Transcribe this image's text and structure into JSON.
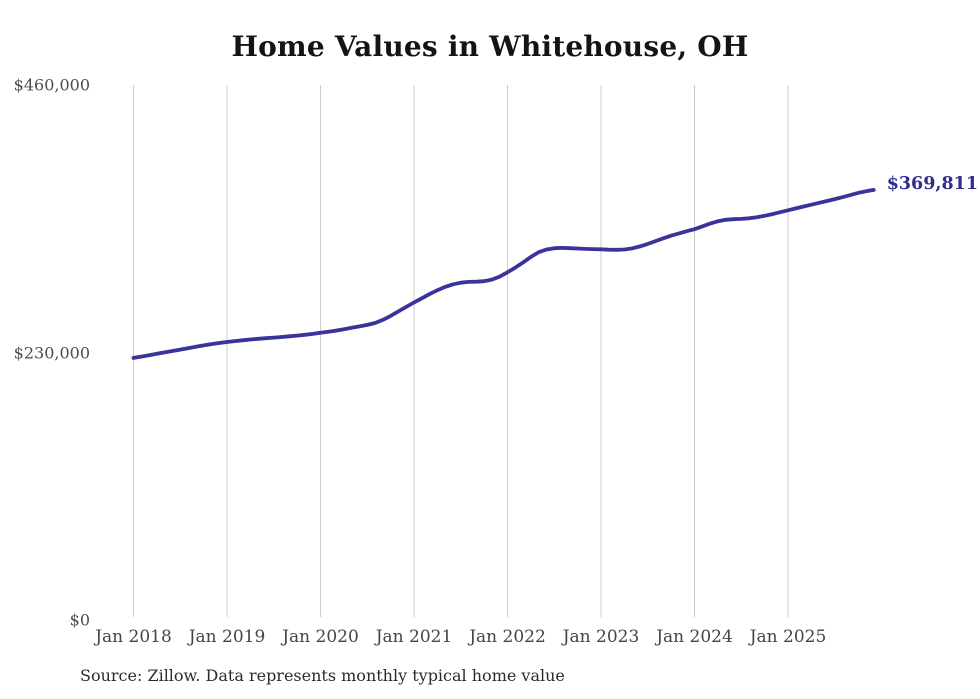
{
  "chart": {
    "title": "Home Values in Whitehouse, OH",
    "end_label": "$369,811",
    "source": "Source: Zillow. Data represents monthly typical home value",
    "colors": {
      "line": "#3a339c",
      "end_label": "#302b8d",
      "grid": "#cccccc",
      "axis_text": "#4d4d4d",
      "title_text": "#141414",
      "source_text": "#2b2b2b"
    }
  },
  "chart_data": {
    "type": "line",
    "title": "Home Values in Whitehouse, OH",
    "xlabel": "",
    "ylabel": "",
    "ylim": [
      0,
      460000
    ],
    "grid": "vertical-only",
    "legend": "none",
    "x_ticks": [
      "Jan 2018",
      "Jan 2019",
      "Jan 2020",
      "Jan 2021",
      "Jan 2022",
      "Jan 2023",
      "Jan 2024",
      "Jan 2025"
    ],
    "y_ticks": [
      {
        "label": "$460,000",
        "value": 460000
      },
      {
        "label": "$230,000",
        "value": 230000
      },
      {
        "label": "$0",
        "value": 0
      }
    ],
    "series": [
      {
        "name": "Typical home value (monthly)",
        "frequency": "monthly",
        "start_month": "Jan 2018",
        "end_month": "Dec 2025",
        "final_value": 369811,
        "final_label": "$369,811",
        "values": [
          225400,
          226500,
          227700,
          228900,
          230100,
          231300,
          232500,
          233700,
          234900,
          236100,
          237200,
          238200,
          239000,
          239800,
          240500,
          241200,
          241800,
          242300,
          242800,
          243300,
          243900,
          244500,
          245200,
          246000,
          246900,
          247800,
          248800,
          250000,
          251200,
          252400,
          253700,
          255400,
          258000,
          261500,
          265300,
          269200,
          273000,
          276600,
          280200,
          283600,
          286400,
          288600,
          290000,
          290700,
          290900,
          291300,
          292700,
          295300,
          299000,
          303000,
          307500,
          312200,
          316200,
          318600,
          319700,
          319900,
          319700,
          319400,
          319100,
          318900,
          318700,
          318400,
          318300,
          318600,
          319500,
          321200,
          323400,
          325800,
          328200,
          330400,
          332400,
          334300,
          336000,
          338400,
          340800,
          342800,
          344100,
          344600,
          344900,
          345400,
          346300,
          347500,
          349000,
          350600,
          352300,
          353900,
          355500,
          357100,
          358700,
          360300,
          361900,
          363500,
          365300,
          367200,
          368600,
          369811
        ]
      }
    ]
  }
}
